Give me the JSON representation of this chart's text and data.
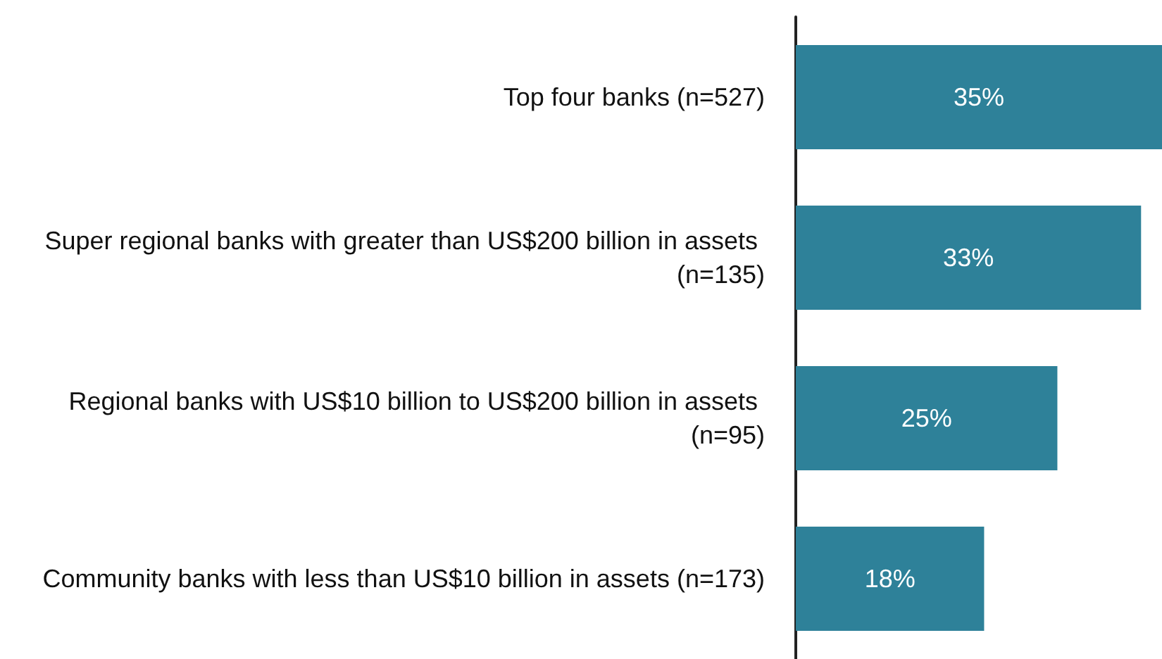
{
  "chart_data": {
    "type": "bar",
    "orientation": "horizontal",
    "categories": [
      "Top four banks (n=527)",
      "Super regional banks with greater than US$200 billion in assets (n=135)",
      "Regional banks with US$10 billion to US$200 billion in assets (n=95)",
      "Community banks with less than US$10 billion in assets (n=173)"
    ],
    "values": [
      35,
      33,
      25,
      18
    ],
    "value_labels": [
      "35%",
      "33%",
      "25%",
      "18%"
    ],
    "color": "#2e8199"
  }
}
